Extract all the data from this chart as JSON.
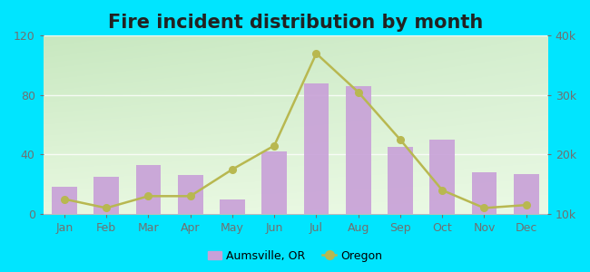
{
  "title": "Fire incident distribution by month",
  "months": [
    "Jan",
    "Feb",
    "Mar",
    "Apr",
    "May",
    "Jun",
    "Jul",
    "Aug",
    "Sep",
    "Oct",
    "Nov",
    "Dec"
  ],
  "aumsville_values": [
    18,
    25,
    33,
    26,
    10,
    42,
    88,
    86,
    45,
    50,
    28,
    27
  ],
  "oregon_values": [
    12500,
    11000,
    13000,
    13000,
    17500,
    21500,
    37000,
    30500,
    22500,
    14000,
    11000,
    11500
  ],
  "bar_color": "#c8a0d8",
  "line_color": "#b8b850",
  "line_marker": "o",
  "left_ylim": [
    0,
    120
  ],
  "left_yticks": [
    0,
    40,
    80,
    120
  ],
  "right_ylim": [
    10000,
    40000
  ],
  "right_yticks": [
    10000,
    20000,
    30000,
    40000
  ],
  "right_yticklabels": [
    "10k",
    "20k",
    "30k",
    "40k"
  ],
  "outer_bg": "#00e5ff",
  "plot_bg_top": "#c8e8c8",
  "plot_bg_bottom": "#e8f5e0",
  "title_fontsize": 15,
  "tick_fontsize": 9,
  "legend_label_bar": "Aumsville, OR",
  "legend_label_line": "Oregon"
}
